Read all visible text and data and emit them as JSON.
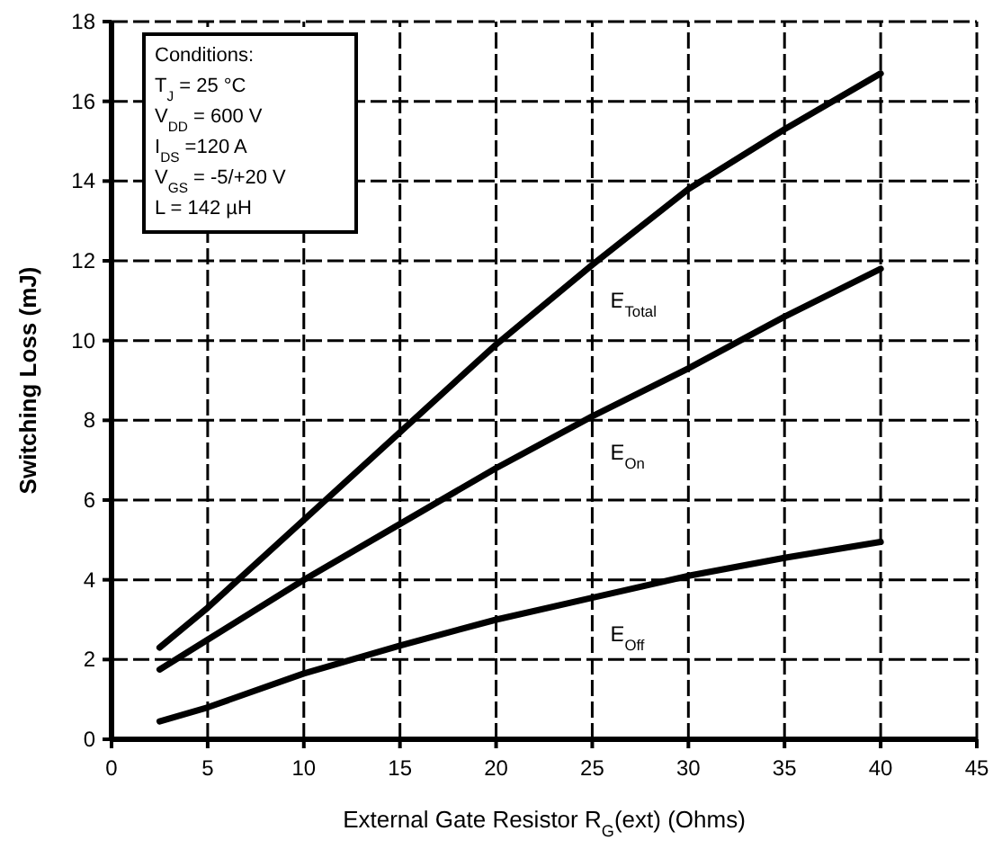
{
  "chart_data": {
    "type": "line",
    "xlabel": "External Gate Resistor R$_{G}$(ext) (Ohms)",
    "ylabel": "Switching Loss (mJ)",
    "xlim": [
      0,
      45
    ],
    "xticks": [
      0,
      5,
      10,
      15,
      20,
      25,
      30,
      35,
      40,
      45
    ],
    "ylim": [
      0,
      18
    ],
    "yticks": [
      0,
      2,
      4,
      6,
      8,
      10,
      12,
      14,
      16,
      18
    ],
    "grid": true,
    "marker": "none",
    "line_style": "solid",
    "x": [
      2.5,
      5,
      10,
      15,
      20,
      25,
      30,
      35,
      40
    ],
    "series": [
      {
        "name": "E$_{Total}$",
        "color": "#000000",
        "values": [
          2.3,
          3.3,
          5.5,
          7.7,
          9.9,
          11.9,
          13.8,
          15.3,
          16.7
        ]
      },
      {
        "name": "E$_{On}$",
        "color": "#000000",
        "values": [
          1.75,
          2.5,
          4.0,
          5.4,
          6.8,
          8.1,
          9.3,
          10.6,
          11.8
        ]
      },
      {
        "name": "E$_{Off}$",
        "color": "#000000",
        "values": [
          0.45,
          0.8,
          1.65,
          2.35,
          3.0,
          3.55,
          4.1,
          4.55,
          4.95
        ]
      }
    ],
    "annotations": [
      "Conditions:",
      "T$_{J}$ = 25 °C",
      "V$_{DD}$ = 600 V",
      "I$_{DS}$ =120 A",
      "V$_{GS}$ = -5/+20 V",
      "L = 142 µH"
    ]
  }
}
